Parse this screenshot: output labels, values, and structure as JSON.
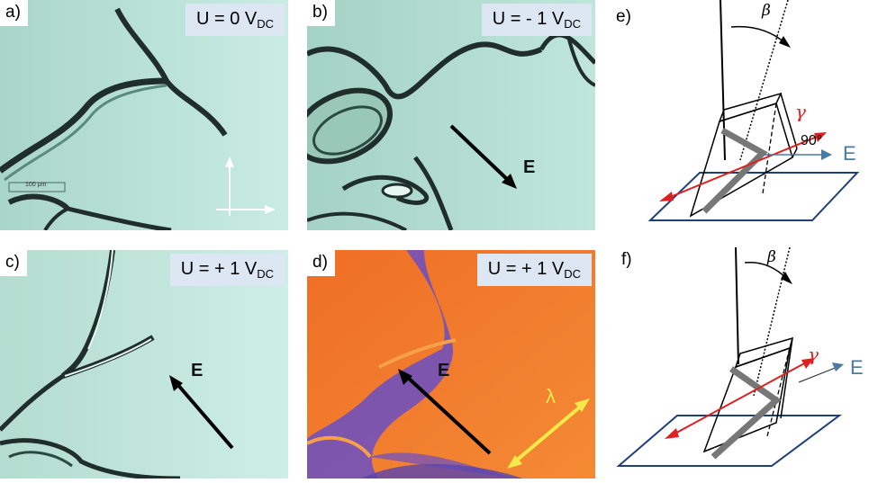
{
  "panels": {
    "a": {
      "label": "a)",
      "voltage_main": "U = 0 V",
      "voltage_sub": "DC",
      "scale": "100 μm"
    },
    "b": {
      "label": "b)",
      "voltage_main": "U = - 1 V",
      "voltage_sub": "DC",
      "field": "E"
    },
    "c": {
      "label": "c)",
      "voltage_main": "U = + 1 V",
      "voltage_sub": "DC",
      "field": "E"
    },
    "d": {
      "label": "d)",
      "voltage_main": "U = + 1 V",
      "voltage_sub": "DC",
      "field": "E",
      "wave": "λ"
    }
  },
  "diagrams": {
    "e": {
      "label": "e)",
      "beta": "β",
      "gamma": "γ",
      "angle": "90°",
      "field": "E"
    },
    "f": {
      "label": "f)",
      "beta": "β",
      "gamma": "γ",
      "field": "E"
    }
  },
  "colors": {
    "micro_bg": "#b8e2d6",
    "defect_line": "#1f2e2a",
    "retardation_bg": "#f07a2a",
    "retardation_blue": "#6a4fc4",
    "gamma_red": "#e02020",
    "plane_blue": "#1f3f7a",
    "e_arrow": "#4a7aa0"
  }
}
